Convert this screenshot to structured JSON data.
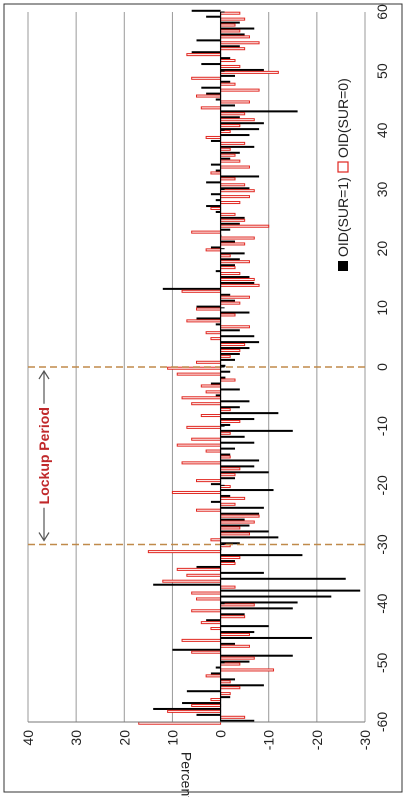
{
  "chart_data": {
    "type": "bar",
    "orientation": "rotated-90-clockwise",
    "xlabel": "",
    "ylabel": "Percent",
    "x_ticks": [
      "-60",
      "-50",
      "-40",
      "-30",
      "-20",
      "-10",
      "0",
      "10",
      "20",
      "30",
      "40",
      "50",
      "60"
    ],
    "y_ticks": [
      "40",
      "30",
      "20",
      "10",
      "0",
      "-10",
      "-20",
      "-30"
    ],
    "xlim": [
      -60,
      60
    ],
    "ylim": [
      -30,
      40
    ],
    "grid": true,
    "legend_position": "right-middle",
    "annotation": "Lockup Period",
    "lockup_bounds": [
      -30,
      0
    ],
    "colors": {
      "sur1": "#000000",
      "sur0": "#e0261f",
      "lockup_line": "#c08a4a",
      "annotation": "#c0282a",
      "grid": "#999999"
    },
    "series": [
      {
        "name": "OID(SUR=1)",
        "x": [
          -60,
          -59,
          -58,
          -57,
          -56,
          -55,
          -54,
          -53,
          -52,
          -51,
          -50,
          -49,
          -48,
          -47,
          -46,
          -45,
          -44,
          -43,
          -42,
          -41,
          -40,
          -39,
          -38,
          -37,
          -36,
          -35,
          -34,
          -33,
          -32,
          -31,
          -30,
          -29,
          -28,
          -27,
          -26,
          -25,
          -24,
          -23,
          -22,
          -21,
          -20,
          -19,
          -18,
          -17,
          -16,
          -15,
          -14,
          -13,
          -12,
          -11,
          -10,
          -9,
          -8,
          -7,
          -6,
          -5,
          -4,
          -3,
          -2,
          -1,
          0,
          1,
          2,
          3,
          4,
          5,
          6,
          7,
          8,
          9,
          10,
          11,
          12,
          13,
          14,
          15,
          16,
          17,
          18,
          19,
          20,
          21,
          22,
          23,
          24,
          25,
          26,
          27,
          28,
          29,
          30,
          31,
          32,
          33,
          34,
          35,
          36,
          37,
          38,
          39,
          40,
          41,
          42,
          43,
          44,
          45,
          46,
          47,
          48,
          49,
          50,
          51,
          52,
          53,
          54,
          55,
          56,
          57,
          58,
          59,
          60
        ],
        "values": [
          -7,
          5,
          14,
          8,
          -2,
          7,
          -9,
          -3,
          2,
          1,
          -6,
          -15,
          10,
          -3,
          -19,
          -7,
          -10,
          3,
          -5,
          -15,
          -16,
          -23,
          -29,
          14,
          -26,
          -9,
          5,
          -3,
          -17,
          0,
          -4,
          -12,
          -10,
          -6,
          -5,
          -8,
          -9,
          2,
          -2,
          -11,
          2,
          -3,
          -10,
          -7,
          -8,
          -2,
          -3,
          -7,
          -5,
          -15,
          -2,
          -7,
          -12,
          -4,
          -6,
          1,
          -4,
          2,
          -1,
          -2,
          -1,
          -3,
          -4,
          -6,
          -8,
          -7,
          -4,
          1,
          5,
          -6,
          5,
          -3,
          -2,
          12,
          -7,
          -6,
          1,
          -3,
          -4,
          -5,
          2,
          -3,
          0,
          -2,
          -4,
          -5,
          1,
          3,
          1,
          2,
          -6,
          3,
          -8,
          1,
          2,
          -2,
          -4,
          -7,
          2,
          -6,
          -8,
          -9,
          -4,
          -16,
          -3,
          1,
          3,
          4,
          -2,
          -3,
          -9,
          4,
          -2,
          6,
          -4,
          5,
          -5,
          -7,
          -4,
          3,
          6
        ]
      },
      {
        "name": "OID(SUR=0)",
        "x": [
          -60,
          -59,
          -58,
          -57,
          -56,
          -55,
          -54,
          -53,
          -52,
          -51,
          -50,
          -49,
          -48,
          -47,
          -46,
          -45,
          -44,
          -43,
          -42,
          -41,
          -40,
          -39,
          -38,
          -37,
          -36,
          -35,
          -34,
          -33,
          -32,
          -31,
          -30,
          -29,
          -28,
          -27,
          -26,
          -25,
          -24,
          -23,
          -22,
          -21,
          -20,
          -19,
          -18,
          -17,
          -16,
          -15,
          -14,
          -13,
          -12,
          -11,
          -10,
          -9,
          -8,
          -7,
          -6,
          -5,
          -4,
          -3,
          -2,
          -1,
          0,
          1,
          2,
          3,
          4,
          5,
          6,
          7,
          8,
          9,
          10,
          11,
          12,
          13,
          14,
          15,
          16,
          17,
          18,
          19,
          20,
          21,
          22,
          23,
          24,
          25,
          26,
          27,
          28,
          29,
          30,
          31,
          32,
          33,
          34,
          35,
          36,
          37,
          38,
          39,
          40,
          41,
          42,
          43,
          44,
          45,
          46,
          47,
          48,
          49,
          50,
          51,
          52,
          53,
          54,
          55,
          56,
          57,
          58,
          59,
          60
        ],
        "values": [
          17,
          -5,
          11,
          6,
          2,
          -2,
          -4,
          -2,
          3,
          -11,
          -4,
          -7,
          6,
          -6,
          8,
          -6,
          2,
          4,
          -5,
          6,
          -7,
          5,
          6,
          -3,
          12,
          7,
          9,
          -3,
          -4,
          15,
          -2,
          2,
          -6,
          -4,
          -7,
          -8,
          5,
          -3,
          -5,
          10,
          -2,
          5,
          -3,
          -4,
          8,
          -2,
          3,
          9,
          6,
          -2,
          7,
          -4,
          4,
          -2,
          6,
          8,
          3,
          4,
          -3,
          9,
          11,
          5,
          -2,
          -4,
          -5,
          2,
          3,
          -6,
          7,
          -3,
          5,
          -4,
          -6,
          8,
          -8,
          -7,
          -4,
          -3,
          -6,
          -2,
          3,
          -5,
          -7,
          6,
          -10,
          -5,
          -3,
          2,
          -4,
          -6,
          -7,
          -5,
          -3,
          2,
          -6,
          -4,
          -3,
          -2,
          -5,
          3,
          -2,
          -4,
          -7,
          -5,
          4,
          -6,
          5,
          -8,
          -3,
          6,
          -12,
          -4,
          -3,
          7,
          -5,
          -8,
          -6,
          -4,
          -3,
          -5,
          -4
        ]
      }
    ]
  }
}
